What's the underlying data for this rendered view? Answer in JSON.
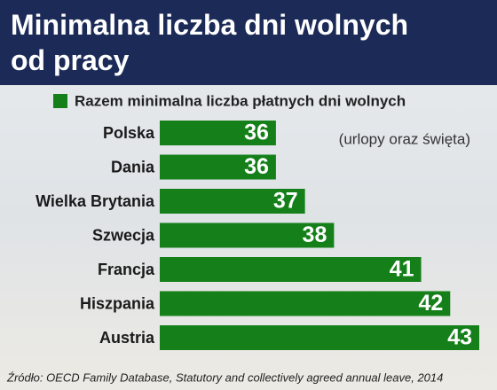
{
  "chart_data": {
    "type": "barh",
    "title": "Minimalna liczba dni wolnych od pracy",
    "legend": "Razem minimalna liczba płatnych dni wolnych",
    "annotation": "(urlopy oraz święta)",
    "source": "Źródło: OECD Family Database, Statutory and collectively agreed annual leave, 2014",
    "categories": [
      "Polska",
      "Dania",
      "Wielka Brytania",
      "Szwecja",
      "Francja",
      "Hiszpania",
      "Austria"
    ],
    "values": [
      36,
      36,
      37,
      38,
      41,
      42,
      43
    ],
    "color": "#15801a",
    "xlim": [
      32,
      43
    ]
  }
}
